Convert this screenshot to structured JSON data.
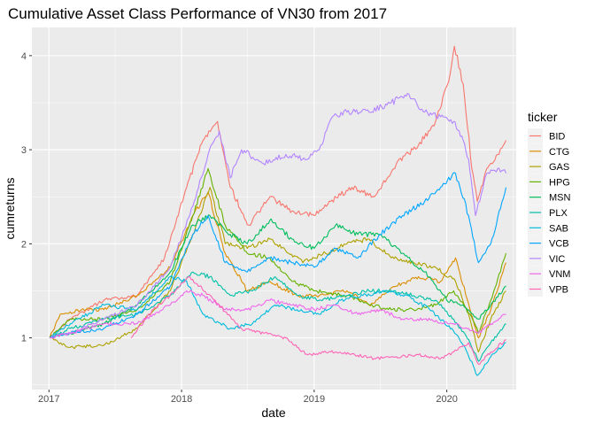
{
  "chart_data": {
    "type": "line",
    "title": "Cumulative Asset Class Performance of VN30 from 2017",
    "xlabel": "date",
    "ylabel": "cumreturns",
    "x_ticks": [
      "2017",
      "2018",
      "2019",
      "2020"
    ],
    "y_ticks": [
      "1",
      "2",
      "3",
      "4"
    ],
    "xlim": [
      "2016-11-15",
      "2020-07-10"
    ],
    "ylim": [
      0.45,
      4.3
    ],
    "grid": true,
    "legend_title": "ticker",
    "legend_position": "right",
    "series": [
      {
        "name": "BID",
        "color": "#F8766D",
        "points": [
          [
            "2017-01-03",
            1.0
          ],
          [
            "2017-03-01",
            1.2
          ],
          [
            "2017-06-01",
            1.4
          ],
          [
            "2017-09-01",
            1.45
          ],
          [
            "2017-11-15",
            1.85
          ],
          [
            "2018-01-15",
            2.6
          ],
          [
            "2018-03-01",
            3.1
          ],
          [
            "2018-04-10",
            3.3
          ],
          [
            "2018-05-15",
            2.6
          ],
          [
            "2018-07-05",
            2.2
          ],
          [
            "2018-09-01",
            2.5
          ],
          [
            "2018-11-01",
            2.35
          ],
          [
            "2019-01-01",
            2.3
          ],
          [
            "2019-02-15",
            2.45
          ],
          [
            "2019-04-15",
            2.6
          ],
          [
            "2019-06-15",
            2.5
          ],
          [
            "2019-08-15",
            2.85
          ],
          [
            "2019-10-15",
            3.05
          ],
          [
            "2019-12-01",
            3.3
          ],
          [
            "2020-01-10",
            3.8
          ],
          [
            "2020-01-22",
            4.1
          ],
          [
            "2020-02-15",
            3.7
          ],
          [
            "2020-03-10",
            2.8
          ],
          [
            "2020-03-25",
            2.45
          ],
          [
            "2020-04-20",
            2.8
          ],
          [
            "2020-05-20",
            2.95
          ],
          [
            "2020-06-12",
            3.1
          ]
        ]
      },
      {
        "name": "CTG",
        "color": "#DB8E00",
        "points": [
          [
            "2017-01-03",
            1.0
          ],
          [
            "2017-02-01",
            1.25
          ],
          [
            "2017-04-01",
            1.3
          ],
          [
            "2017-06-01",
            1.3
          ],
          [
            "2017-09-01",
            1.45
          ],
          [
            "2017-12-01",
            1.75
          ],
          [
            "2018-02-01",
            2.3
          ],
          [
            "2018-03-15",
            2.55
          ],
          [
            "2018-05-01",
            1.9
          ],
          [
            "2018-07-01",
            1.5
          ],
          [
            "2018-09-01",
            1.6
          ],
          [
            "2018-11-15",
            1.45
          ],
          [
            "2019-01-15",
            1.45
          ],
          [
            "2019-04-01",
            1.5
          ],
          [
            "2019-06-01",
            1.35
          ],
          [
            "2019-08-15",
            1.55
          ],
          [
            "2019-10-15",
            1.65
          ],
          [
            "2019-12-15",
            1.6
          ],
          [
            "2020-01-25",
            1.85
          ],
          [
            "2020-03-05",
            1.3
          ],
          [
            "2020-03-28",
            1.0
          ],
          [
            "2020-05-01",
            1.3
          ],
          [
            "2020-06-12",
            1.8
          ]
        ]
      },
      {
        "name": "GAS",
        "color": "#AEA200",
        "points": [
          [
            "2017-01-03",
            1.0
          ],
          [
            "2017-03-01",
            0.9
          ],
          [
            "2017-06-01",
            0.92
          ],
          [
            "2017-09-01",
            1.1
          ],
          [
            "2017-12-01",
            1.5
          ],
          [
            "2018-02-01",
            2.1
          ],
          [
            "2018-03-20",
            2.6
          ],
          [
            "2018-05-01",
            2.0
          ],
          [
            "2018-07-01",
            1.95
          ],
          [
            "2018-09-01",
            2.05
          ],
          [
            "2018-12-01",
            1.8
          ],
          [
            "2019-02-01",
            1.9
          ],
          [
            "2019-04-01",
            2.0
          ],
          [
            "2019-06-01",
            2.05
          ],
          [
            "2019-08-01",
            1.85
          ],
          [
            "2019-10-01",
            1.8
          ],
          [
            "2019-12-01",
            1.75
          ],
          [
            "2020-01-25",
            1.6
          ],
          [
            "2020-03-01",
            1.25
          ],
          [
            "2020-03-28",
            0.85
          ],
          [
            "2020-05-01",
            1.2
          ],
          [
            "2020-06-12",
            1.5
          ]
        ]
      },
      {
        "name": "HPG",
        "color": "#64B200",
        "points": [
          [
            "2017-01-03",
            1.0
          ],
          [
            "2017-03-01",
            1.2
          ],
          [
            "2017-06-01",
            1.2
          ],
          [
            "2017-09-01",
            1.3
          ],
          [
            "2017-12-01",
            1.6
          ],
          [
            "2018-02-01",
            2.3
          ],
          [
            "2018-03-15",
            2.8
          ],
          [
            "2018-05-01",
            2.2
          ],
          [
            "2018-07-01",
            1.9
          ],
          [
            "2018-09-01",
            1.85
          ],
          [
            "2018-11-01",
            1.6
          ],
          [
            "2019-01-01",
            1.5
          ],
          [
            "2019-04-01",
            1.45
          ],
          [
            "2019-06-01",
            1.35
          ],
          [
            "2019-08-01",
            1.3
          ],
          [
            "2019-10-01",
            1.3
          ],
          [
            "2019-12-01",
            1.35
          ],
          [
            "2020-01-20",
            1.5
          ],
          [
            "2020-03-05",
            1.25
          ],
          [
            "2020-03-28",
            1.05
          ],
          [
            "2020-05-01",
            1.4
          ],
          [
            "2020-06-12",
            1.9
          ]
        ]
      },
      {
        "name": "MSN",
        "color": "#00BD5C",
        "points": [
          [
            "2017-01-03",
            1.0
          ],
          [
            "2017-03-01",
            1.05
          ],
          [
            "2017-06-01",
            1.15
          ],
          [
            "2017-09-01",
            1.35
          ],
          [
            "2017-12-01",
            1.7
          ],
          [
            "2018-02-01",
            2.2
          ],
          [
            "2018-03-20",
            2.3
          ],
          [
            "2018-05-15",
            2.1
          ],
          [
            "2018-07-01",
            2.0
          ],
          [
            "2018-09-01",
            2.25
          ],
          [
            "2018-11-01",
            2.05
          ],
          [
            "2019-01-01",
            1.95
          ],
          [
            "2019-03-01",
            2.2
          ],
          [
            "2019-05-01",
            2.1
          ],
          [
            "2019-07-01",
            2.1
          ],
          [
            "2019-09-01",
            1.9
          ],
          [
            "2019-11-01",
            1.7
          ],
          [
            "2020-01-01",
            1.4
          ],
          [
            "2020-02-15",
            1.35
          ],
          [
            "2020-03-28",
            1.2
          ],
          [
            "2020-05-01",
            1.35
          ],
          [
            "2020-06-12",
            1.55
          ]
        ]
      },
      {
        "name": "PLX",
        "color": "#00C1A7",
        "points": [
          [
            "2017-01-03",
            1.0
          ],
          [
            "2017-03-01",
            1.1
          ],
          [
            "2017-06-01",
            1.2
          ],
          [
            "2017-09-01",
            1.25
          ],
          [
            "2017-12-01",
            1.45
          ],
          [
            "2018-02-01",
            1.7
          ],
          [
            "2018-03-20",
            1.65
          ],
          [
            "2018-05-15",
            1.45
          ],
          [
            "2018-07-15",
            1.5
          ],
          [
            "2018-09-15",
            1.65
          ],
          [
            "2018-11-15",
            1.45
          ],
          [
            "2019-01-15",
            1.4
          ],
          [
            "2019-04-01",
            1.45
          ],
          [
            "2019-06-01",
            1.5
          ],
          [
            "2019-08-01",
            1.5
          ],
          [
            "2019-10-01",
            1.45
          ],
          [
            "2019-12-01",
            1.4
          ],
          [
            "2020-01-20",
            1.2
          ],
          [
            "2020-03-05",
            0.95
          ],
          [
            "2020-03-28",
            0.75
          ],
          [
            "2020-05-01",
            0.95
          ],
          [
            "2020-06-12",
            1.15
          ]
        ]
      },
      {
        "name": "SAB",
        "color": "#00BADE",
        "points": [
          [
            "2017-01-03",
            1.0
          ],
          [
            "2017-03-01",
            1.15
          ],
          [
            "2017-06-01",
            1.35
          ],
          [
            "2017-09-01",
            1.3
          ],
          [
            "2017-12-01",
            1.65
          ],
          [
            "2018-01-15",
            1.6
          ],
          [
            "2018-03-01",
            1.25
          ],
          [
            "2018-05-15",
            1.1
          ],
          [
            "2018-07-15",
            1.15
          ],
          [
            "2018-09-15",
            1.35
          ],
          [
            "2018-11-15",
            1.3
          ],
          [
            "2019-01-15",
            1.25
          ],
          [
            "2019-03-15",
            1.4
          ],
          [
            "2019-05-15",
            1.45
          ],
          [
            "2019-07-15",
            1.5
          ],
          [
            "2019-09-15",
            1.45
          ],
          [
            "2019-11-15",
            1.3
          ],
          [
            "2020-01-15",
            1.1
          ],
          [
            "2020-02-20",
            0.9
          ],
          [
            "2020-03-25",
            0.6
          ],
          [
            "2020-05-01",
            0.8
          ],
          [
            "2020-06-12",
            0.95
          ]
        ]
      },
      {
        "name": "VCB",
        "color": "#00A6FF",
        "points": [
          [
            "2017-01-03",
            1.0
          ],
          [
            "2017-03-01",
            1.05
          ],
          [
            "2017-06-01",
            1.1
          ],
          [
            "2017-09-01",
            1.25
          ],
          [
            "2017-12-01",
            1.55
          ],
          [
            "2018-02-01",
            2.1
          ],
          [
            "2018-03-15",
            2.3
          ],
          [
            "2018-05-01",
            1.8
          ],
          [
            "2018-07-01",
            1.7
          ],
          [
            "2018-09-01",
            1.85
          ],
          [
            "2018-11-01",
            1.8
          ],
          [
            "2019-01-01",
            1.75
          ],
          [
            "2019-03-01",
            1.95
          ],
          [
            "2019-05-01",
            1.85
          ],
          [
            "2019-07-01",
            2.1
          ],
          [
            "2019-09-01",
            2.3
          ],
          [
            "2019-11-01",
            2.45
          ],
          [
            "2019-12-15",
            2.6
          ],
          [
            "2020-01-25",
            2.75
          ],
          [
            "2020-03-01",
            2.3
          ],
          [
            "2020-03-28",
            1.8
          ],
          [
            "2020-05-01",
            2.0
          ],
          [
            "2020-06-12",
            2.6
          ]
        ]
      },
      {
        "name": "VIC",
        "color": "#B385FF",
        "points": [
          [
            "2017-01-03",
            1.0
          ],
          [
            "2017-03-01",
            1.05
          ],
          [
            "2017-06-01",
            1.2
          ],
          [
            "2017-09-01",
            1.35
          ],
          [
            "2017-12-01",
            1.75
          ],
          [
            "2018-02-01",
            2.4
          ],
          [
            "2018-03-15",
            2.95
          ],
          [
            "2018-04-15",
            3.2
          ],
          [
            "2018-05-15",
            2.7
          ],
          [
            "2018-06-15",
            3.0
          ],
          [
            "2018-08-15",
            2.85
          ],
          [
            "2018-10-15",
            2.95
          ],
          [
            "2018-12-15",
            2.9
          ],
          [
            "2019-01-15",
            3.0
          ],
          [
            "2019-02-20",
            3.35
          ],
          [
            "2019-04-01",
            3.4
          ],
          [
            "2019-06-01",
            3.4
          ],
          [
            "2019-08-01",
            3.5
          ],
          [
            "2019-09-15",
            3.6
          ],
          [
            "2019-11-01",
            3.4
          ],
          [
            "2019-12-15",
            3.35
          ],
          [
            "2020-01-20",
            3.3
          ],
          [
            "2020-02-15",
            3.1
          ],
          [
            "2020-03-01",
            2.9
          ],
          [
            "2020-03-20",
            2.3
          ],
          [
            "2020-04-20",
            2.75
          ],
          [
            "2020-05-20",
            2.8
          ],
          [
            "2020-06-12",
            2.75
          ]
        ]
      },
      {
        "name": "VNM",
        "color": "#EF67EB",
        "points": [
          [
            "2017-01-03",
            1.0
          ],
          [
            "2017-03-01",
            1.05
          ],
          [
            "2017-06-01",
            1.15
          ],
          [
            "2017-09-01",
            1.15
          ],
          [
            "2017-12-01",
            1.35
          ],
          [
            "2018-01-15",
            1.5
          ],
          [
            "2018-03-01",
            1.45
          ],
          [
            "2018-05-01",
            1.3
          ],
          [
            "2018-07-01",
            1.3
          ],
          [
            "2018-09-01",
            1.4
          ],
          [
            "2018-11-01",
            1.35
          ],
          [
            "2019-01-01",
            1.3
          ],
          [
            "2019-03-01",
            1.35
          ],
          [
            "2019-05-01",
            1.25
          ],
          [
            "2019-07-01",
            1.3
          ],
          [
            "2019-09-01",
            1.2
          ],
          [
            "2019-11-01",
            1.2
          ],
          [
            "2020-01-15",
            1.15
          ],
          [
            "2020-03-01",
            1.1
          ],
          [
            "2020-03-28",
            1.05
          ],
          [
            "2020-05-01",
            1.15
          ],
          [
            "2020-06-12",
            1.25
          ]
        ]
      },
      {
        "name": "VPB",
        "color": "#FF63B6",
        "points": [
          [
            "2017-08-15",
            1.0
          ],
          [
            "2017-10-15",
            1.3
          ],
          [
            "2017-12-15",
            1.5
          ],
          [
            "2018-01-20",
            1.65
          ],
          [
            "2018-02-20",
            1.55
          ],
          [
            "2018-04-15",
            1.35
          ],
          [
            "2018-06-15",
            1.1
          ],
          [
            "2018-08-15",
            1.05
          ],
          [
            "2018-10-15",
            1.0
          ],
          [
            "2018-11-15",
            0.9
          ],
          [
            "2018-12-15",
            0.82
          ],
          [
            "2019-02-15",
            0.85
          ],
          [
            "2019-04-15",
            0.83
          ],
          [
            "2019-06-15",
            0.78
          ],
          [
            "2019-08-15",
            0.8
          ],
          [
            "2019-10-15",
            0.82
          ],
          [
            "2019-12-15",
            0.78
          ],
          [
            "2020-01-20",
            0.85
          ],
          [
            "2020-03-01",
            0.95
          ],
          [
            "2020-03-28",
            0.72
          ],
          [
            "2020-05-01",
            0.85
          ],
          [
            "2020-06-12",
            0.98
          ]
        ]
      }
    ]
  }
}
